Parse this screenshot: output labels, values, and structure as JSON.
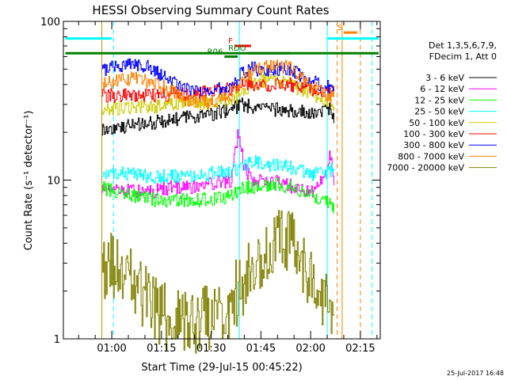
{
  "chart_data": {
    "type": "line",
    "title": "HESSI Observing Summary Count Rates",
    "xlabel": "Start Time (29-Jul-15 00:45:22)",
    "ylabel": "Count Rate (s⁻¹ detector⁻¹)",
    "y_scale": "log",
    "ylim": [
      1,
      100
    ],
    "xlim_minutes": [
      45.4,
      141.0
    ],
    "y_ticks": [
      {
        "value": 1,
        "label": "1"
      },
      {
        "value": 10,
        "label": "10"
      },
      {
        "value": 100,
        "label": "100"
      }
    ],
    "x_ticks": [
      {
        "minute": 60,
        "label": "01:00"
      },
      {
        "minute": 75,
        "label": "01:15"
      },
      {
        "minute": 90,
        "label": "01:30"
      },
      {
        "minute": 105,
        "label": "01:45"
      },
      {
        "minute": 120,
        "label": "02:00"
      },
      {
        "minute": 135,
        "label": "02:15"
      }
    ],
    "legend_header": [
      "Det 1,3,5,6,7,9,",
      "FDecim 1, Att 0"
    ],
    "legend_position": "right",
    "series": [
      {
        "name": "3 - 6 keV",
        "color": "#000000",
        "x": [
          57,
          60,
          66,
          72,
          78,
          84,
          90,
          96,
          99,
          102,
          108,
          114,
          118,
          120,
          124,
          126,
          127
        ],
        "y": [
          21,
          21,
          22,
          23,
          24,
          25,
          26,
          28,
          30,
          29,
          28,
          27,
          27,
          26,
          27,
          28,
          25
        ]
      },
      {
        "name": "6 - 12 keV",
        "color": "#ff00ff",
        "x": [
          57,
          60,
          66,
          72,
          78,
          84,
          90,
          96,
          98,
          100,
          102,
          106,
          112,
          118,
          120,
          124,
          126,
          127
        ],
        "y": [
          9,
          9,
          8.5,
          8.5,
          9,
          9,
          9.5,
          10,
          20,
          12,
          10,
          10,
          9.5,
          8.5,
          8.5,
          10,
          15,
          10
        ]
      },
      {
        "name": "12 - 25 keV",
        "color": "#00ff00",
        "x": [
          57,
          60,
          66,
          72,
          78,
          84,
          90,
          96,
          99,
          102,
          108,
          114,
          120,
          124,
          126,
          127
        ],
        "y": [
          9,
          8.5,
          8,
          7.5,
          7.5,
          7.5,
          7.5,
          8,
          9,
          9,
          9.5,
          9,
          8,
          7.5,
          7,
          6.5
        ]
      },
      {
        "name": "25 - 50 keV",
        "color": "#00ffff",
        "x": [
          57,
          60,
          66,
          72,
          78,
          84,
          90,
          96,
          99,
          102,
          108,
          114,
          120,
          124,
          126,
          127
        ],
        "y": [
          11,
          11,
          11,
          10.5,
          10.5,
          10.5,
          11,
          11.5,
          12,
          13,
          12.5,
          12,
          11,
          11,
          11.5,
          12
        ]
      },
      {
        "name": "50 - 100 keV",
        "color": "#cccc00",
        "x": [
          57,
          60,
          66,
          72,
          78,
          84,
          90,
          96,
          99,
          102,
          108,
          114,
          120,
          124,
          126,
          127
        ],
        "y": [
          28,
          28,
          29,
          29,
          30,
          30,
          31,
          32,
          35,
          40,
          44,
          40,
          34,
          31,
          31,
          30
        ]
      },
      {
        "name": "100 - 300 keV",
        "color": "#ff0000",
        "x": [
          57,
          60,
          66,
          72,
          78,
          84,
          90,
          96,
          99,
          102,
          108,
          114,
          120,
          124,
          126,
          127
        ],
        "y": [
          34,
          34,
          34,
          34,
          35,
          35,
          36,
          38,
          41,
          40,
          40,
          40,
          38,
          36,
          36,
          38
        ]
      },
      {
        "name": "300 - 800 keV",
        "color": "#0000ff",
        "x": [
          57,
          60,
          66,
          72,
          78,
          84,
          90,
          96,
          99,
          102,
          108,
          114,
          120,
          124,
          126,
          127
        ],
        "y": [
          50,
          51,
          55,
          51,
          42,
          37,
          37,
          40,
          47,
          50,
          50,
          49,
          43,
          39,
          38,
          38
        ]
      },
      {
        "name": "800 - 7000 keV",
        "color": "#ff8000",
        "x": [
          57,
          60,
          66,
          72,
          78,
          84,
          90,
          96,
          99,
          102,
          108,
          114,
          120,
          124,
          126,
          127
        ],
        "y": [
          40,
          41,
          44,
          42,
          36,
          31,
          31,
          35,
          43,
          48,
          53,
          51,
          40,
          35,
          33,
          33
        ]
      },
      {
        "name": "7000 - 20000 keV",
        "color": "#808000",
        "x": [
          57,
          60,
          66,
          72,
          78,
          84,
          90,
          96,
          99,
          102,
          108,
          114,
          120,
          124,
          126,
          127
        ],
        "y": [
          2.8,
          2.8,
          2.2,
          1.6,
          1.3,
          1.3,
          1.4,
          1.7,
          2.2,
          3.0,
          4.0,
          4.0,
          2.5,
          1.8,
          1.5,
          1.3
        ]
      }
    ],
    "flag_bars": [
      {
        "label": "",
        "color": "#00ffff",
        "x0": 46,
        "x1": 60,
        "y": 78
      },
      {
        "label": "",
        "color": "#00ffff",
        "x0": 125,
        "x1": 140.5,
        "y": 78
      },
      {
        "label": "",
        "color": "#008000",
        "x0": 46,
        "x1": 140.5,
        "y": 63
      },
      {
        "label": "F",
        "color": "#ff0000",
        "x0": 97,
        "x1": 102,
        "y": 70
      },
      {
        "label": "RDO",
        "color": "#008000",
        "x0": 101,
        "x1": 114,
        "y": 63
      },
      {
        "label": "R06",
        "color": "#008000",
        "x0": 94,
        "x1": 98,
        "y": 60
      },
      {
        "label": "S",
        "color": "#ff8000",
        "x0": 130,
        "x1": 134,
        "y": 85
      }
    ],
    "vlines": [
      {
        "x": 45.4,
        "color": "#00ffff",
        "dash": false
      },
      {
        "x": 57,
        "color": "#cc8800",
        "dash": false
      },
      {
        "x": 60.5,
        "color": "#00ffff",
        "dash": true
      },
      {
        "x": 98.5,
        "color": "#00ffff",
        "dash": false
      },
      {
        "x": 125,
        "color": "#00ffff",
        "dash": false
      },
      {
        "x": 128,
        "color": "#ff8000",
        "dash": true
      },
      {
        "x": 129.5,
        "color": "#ff8000",
        "dash": false
      },
      {
        "x": 135,
        "color": "#ff8000",
        "dash": true
      },
      {
        "x": 138.5,
        "color": "#00ffff",
        "dash": true
      }
    ],
    "grid": false
  },
  "footer_timestamp": "25-Jul-2017 16:48"
}
